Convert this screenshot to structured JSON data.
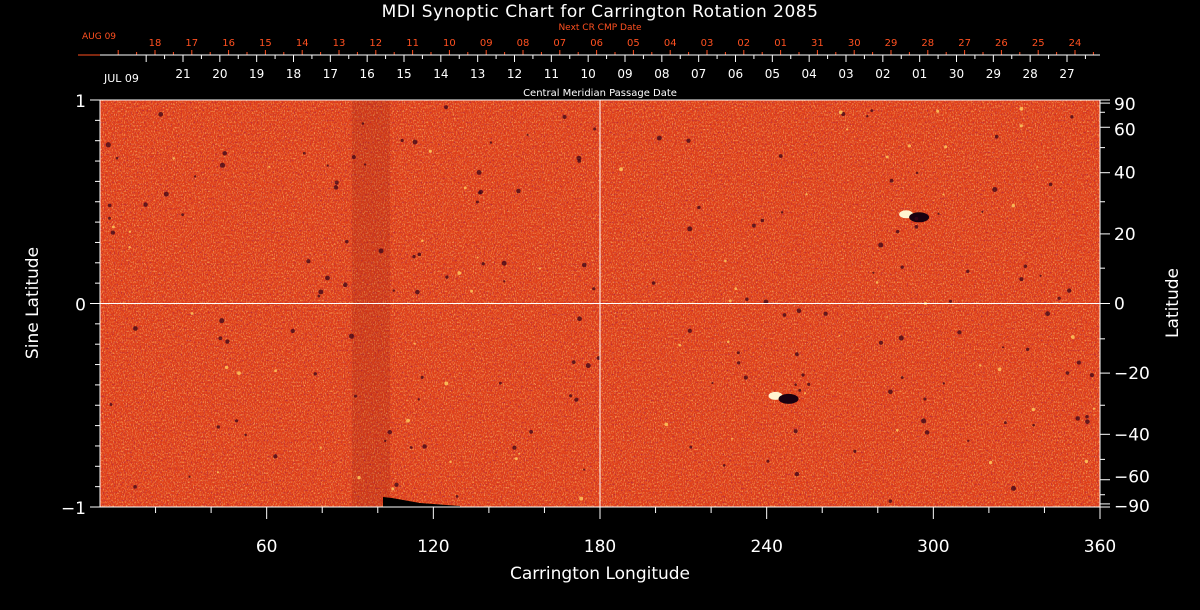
{
  "chart_data": {
    "type": "heatmap",
    "title": "MDI Synoptic Chart for Carrington Rotation 2085",
    "xlabel": "Carrington Longitude",
    "ylabel_left": "Sine Latitude",
    "ylabel_right": "Latitude",
    "xlim": [
      0,
      360
    ],
    "ylim": [
      -1,
      1
    ],
    "x_ticks": [
      "60",
      "120",
      "180",
      "240",
      "300",
      "360"
    ],
    "y_left_ticks": [
      "1",
      "0",
      "−1"
    ],
    "y_right_ticks": [
      "90",
      "60",
      "40",
      "20",
      "0",
      "−20",
      "−40",
      "−60",
      "−90"
    ],
    "cr_date_label": "Next CR CMP Date",
    "cr_start_label": "AUG 09",
    "cr_dates": [
      "18",
      "17",
      "16",
      "15",
      "14",
      "13",
      "12",
      "11",
      "10",
      "09",
      "08",
      "07",
      "06",
      "05",
      "04",
      "03",
      "02",
      "01",
      "31",
      "30",
      "29",
      "28",
      "27",
      "26",
      "25",
      "24"
    ],
    "cmp_date_label": "Central Meridian Passage Date",
    "cmp_start_label": "JUL 09",
    "cmp_dates": [
      "21",
      "20",
      "19",
      "18",
      "17",
      "16",
      "15",
      "14",
      "13",
      "12",
      "11",
      "10",
      "09",
      "08",
      "07",
      "06",
      "05",
      "04",
      "03",
      "02",
      "01",
      "30",
      "29",
      "28",
      "27"
    ],
    "colors": {
      "background": "#000000",
      "map_base": "#e0401a",
      "map_dark": "#8a0a10",
      "map_bright": "#ffc040",
      "next_cr_labels": "#ff5020",
      "axes": "#ffffff"
    },
    "features": [
      {
        "name": "bipolar region north",
        "lon": 292,
        "lat": 26
      },
      {
        "name": "bipolar region south",
        "lon": 245,
        "lat": -27
      }
    ]
  }
}
